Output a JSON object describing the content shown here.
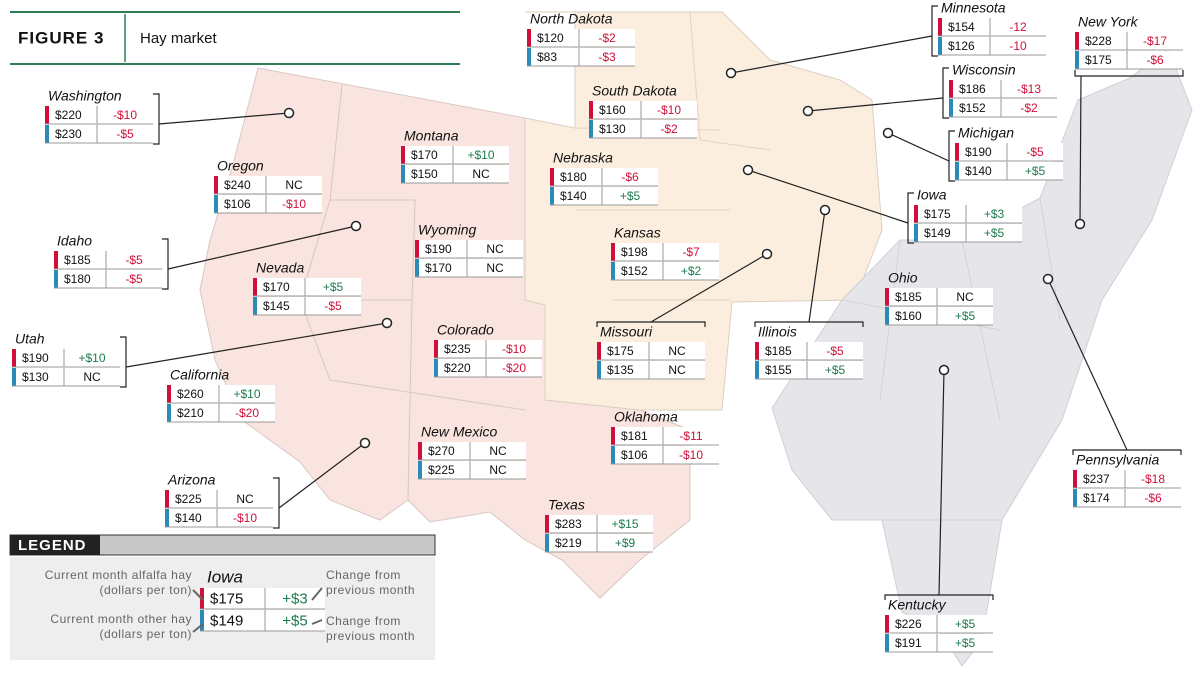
{
  "header": {
    "figure": "FIGURE 3",
    "title": "Hay market"
  },
  "states": [
    {
      "name": "Washington",
      "alfalfa": {
        "price": "$220",
        "change": "-$10"
      },
      "other": {
        "price": "$230",
        "change": "-$5"
      }
    },
    {
      "name": "Oregon",
      "alfalfa": {
        "price": "$240",
        "change": "NC"
      },
      "other": {
        "price": "$106",
        "change": "-$10"
      }
    },
    {
      "name": "Idaho",
      "alfalfa": {
        "price": "$185",
        "change": "-$5"
      },
      "other": {
        "price": "$180",
        "change": "-$5"
      }
    },
    {
      "name": "Nevada",
      "alfalfa": {
        "price": "$170",
        "change": "+$5"
      },
      "other": {
        "price": "$145",
        "change": "-$5"
      }
    },
    {
      "name": "Utah",
      "alfalfa": {
        "price": "$190",
        "change": "+$10"
      },
      "other": {
        "price": "$130",
        "change": "NC"
      }
    },
    {
      "name": "California",
      "alfalfa": {
        "price": "$260",
        "change": "+$10"
      },
      "other": {
        "price": "$210",
        "change": "-$20"
      }
    },
    {
      "name": "Arizona",
      "alfalfa": {
        "price": "$225",
        "change": "NC"
      },
      "other": {
        "price": "$140",
        "change": "-$10"
      }
    },
    {
      "name": "Montana",
      "alfalfa": {
        "price": "$170",
        "change": "+$10"
      },
      "other": {
        "price": "$150",
        "change": "NC"
      }
    },
    {
      "name": "Wyoming",
      "alfalfa": {
        "price": "$190",
        "change": "NC"
      },
      "other": {
        "price": "$170",
        "change": "NC"
      }
    },
    {
      "name": "Colorado",
      "alfalfa": {
        "price": "$235",
        "change": "-$10"
      },
      "other": {
        "price": "$220",
        "change": "-$20"
      }
    },
    {
      "name": "New Mexico",
      "alfalfa": {
        "price": "$270",
        "change": "NC"
      },
      "other": {
        "price": "$225",
        "change": "NC"
      }
    },
    {
      "name": "North Dakota",
      "alfalfa": {
        "price": "$120",
        "change": "-$2"
      },
      "other": {
        "price": "$83",
        "change": "-$3"
      }
    },
    {
      "name": "South Dakota",
      "alfalfa": {
        "price": "$160",
        "change": "-$10"
      },
      "other": {
        "price": "$130",
        "change": "-$2"
      }
    },
    {
      "name": "Nebraska",
      "alfalfa": {
        "price": "$180",
        "change": "-$6"
      },
      "other": {
        "price": "$140",
        "change": "+$5"
      }
    },
    {
      "name": "Kansas",
      "alfalfa": {
        "price": "$198",
        "change": "-$7"
      },
      "other": {
        "price": "$152",
        "change": "+$2"
      }
    },
    {
      "name": "Oklahoma",
      "alfalfa": {
        "price": "$181",
        "change": "-$11"
      },
      "other": {
        "price": "$106",
        "change": "-$10"
      }
    },
    {
      "name": "Texas",
      "alfalfa": {
        "price": "$283",
        "change": "+$15"
      },
      "other": {
        "price": "$219",
        "change": "+$9"
      }
    },
    {
      "name": "Minnesota",
      "alfalfa": {
        "price": "$154",
        "change": "-12"
      },
      "other": {
        "price": "$126",
        "change": "-10"
      }
    },
    {
      "name": "Wisconsin",
      "alfalfa": {
        "price": "$186",
        "change": "-$13"
      },
      "other": {
        "price": "$152",
        "change": "-$2"
      }
    },
    {
      "name": "Michigan",
      "alfalfa": {
        "price": "$190",
        "change": "-$5"
      },
      "other": {
        "price": "$140",
        "change": "+$5"
      }
    },
    {
      "name": "Iowa",
      "alfalfa": {
        "price": "$175",
        "change": "+$3"
      },
      "other": {
        "price": "$149",
        "change": "+$5"
      }
    },
    {
      "name": "Missouri",
      "alfalfa": {
        "price": "$175",
        "change": "NC"
      },
      "other": {
        "price": "$135",
        "change": "NC"
      }
    },
    {
      "name": "Illinois",
      "alfalfa": {
        "price": "$185",
        "change": "-$5"
      },
      "other": {
        "price": "$155",
        "change": "+$5"
      }
    },
    {
      "name": "Ohio",
      "alfalfa": {
        "price": "$185",
        "change": "NC"
      },
      "other": {
        "price": "$160",
        "change": "+$5"
      }
    },
    {
      "name": "New York",
      "alfalfa": {
        "price": "$228",
        "change": "-$17"
      },
      "other": {
        "price": "$175",
        "change": "-$6"
      }
    },
    {
      "name": "Pennsylvania",
      "alfalfa": {
        "price": "$237",
        "change": "-$18"
      },
      "other": {
        "price": "$174",
        "change": "-$6"
      }
    },
    {
      "name": "Kentucky",
      "alfalfa": {
        "price": "$226",
        "change": "+$5"
      },
      "other": {
        "price": "$191",
        "change": "+$5"
      }
    }
  ],
  "legend": {
    "title": "LEGEND",
    "alfalfa_label": [
      "Current month alfalfa hay",
      "(dollars per ton)"
    ],
    "other_label": [
      "Current month other hay",
      "(dollars per ton)"
    ],
    "alfalfa_change_label": [
      "Change from",
      "previous month"
    ],
    "other_change_label": [
      "Change from",
      "previous month"
    ],
    "example": {
      "name": "Iowa",
      "alfalfa": {
        "price": "$175",
        "change": "+$3"
      },
      "other": {
        "price": "$149",
        "change": "+$5"
      }
    }
  }
}
